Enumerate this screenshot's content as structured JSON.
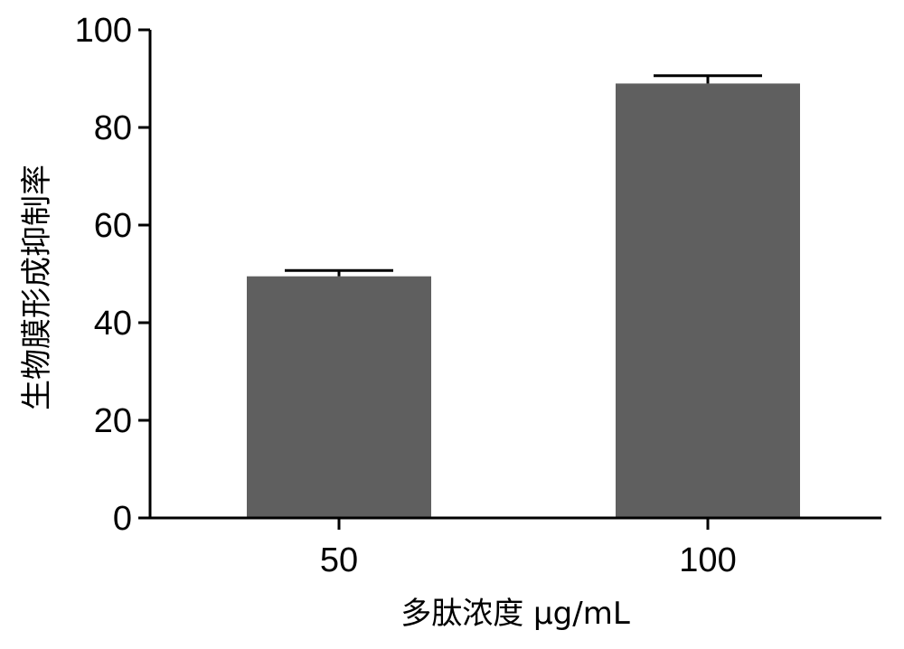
{
  "chart_data": {
    "type": "bar",
    "categories": [
      "50",
      "100"
    ],
    "values": [
      49.5,
      89
    ],
    "errors": [
      1.2,
      1.6
    ],
    "xlabel": "多肽浓度 μg/mL",
    "ylabel": "生物膜形成抑制率",
    "ylim": [
      0,
      100
    ],
    "yticks": [
      0,
      20,
      40,
      60,
      80,
      100
    ],
    "yticklabels": [
      "0",
      "20",
      "40",
      "60",
      "80",
      "100"
    ],
    "grid": false,
    "colors": {
      "bar": "#5f5f5f",
      "axis": "#000000"
    }
  }
}
